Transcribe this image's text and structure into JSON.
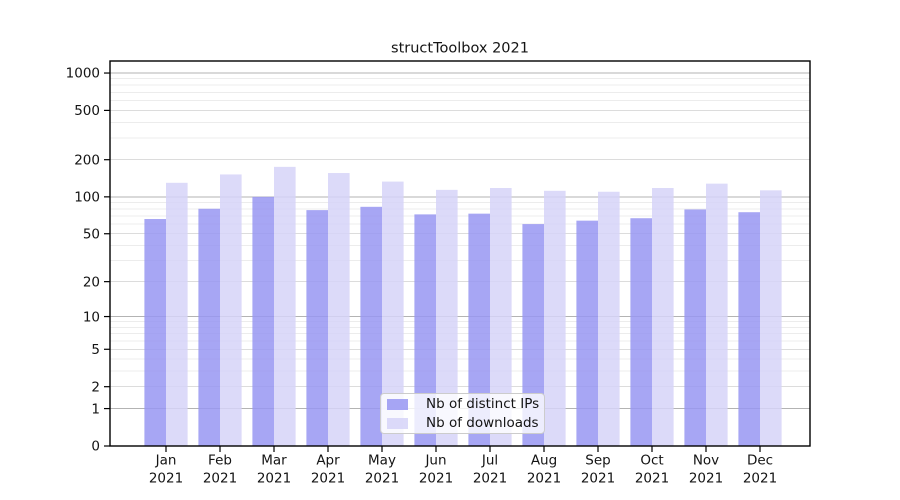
{
  "figure": {
    "background": "#ffffff"
  },
  "chart_data": {
    "type": "bar",
    "title": "structToolbox 2021",
    "xlabel": "",
    "ylabel": "",
    "categories": [
      "Jan",
      "Feb",
      "Mar",
      "Apr",
      "May",
      "Jun",
      "Jul",
      "Aug",
      "Sep",
      "Oct",
      "Nov",
      "Dec"
    ],
    "category_year": "2021",
    "series": [
      {
        "name": "Nb of distinct IPs",
        "color": "#9896f2",
        "values": [
          66,
          80,
          100,
          78,
          83,
          72,
          73,
          60,
          64,
          67,
          79,
          75
        ]
      },
      {
        "name": "Nb of downloads",
        "color": "#d6d4f8",
        "values": [
          130,
          152,
          175,
          156,
          133,
          114,
          118,
          112,
          110,
          118,
          128,
          113
        ]
      }
    ],
    "y_axis": {
      "scale": "log1p",
      "ylim": [
        0,
        1250
      ],
      "tick_values": [
        0,
        1,
        2,
        5,
        10,
        20,
        50,
        100,
        200,
        500,
        1000
      ],
      "tick_labels": [
        "0",
        "1",
        "2",
        "5",
        "10",
        "20",
        "50",
        "100",
        "200",
        "500",
        "1000"
      ],
      "major_gridlines": [
        1,
        10,
        100,
        1000
      ],
      "labeled_minor_gridlines": [
        2,
        5,
        20,
        50,
        200,
        500
      ],
      "minor_gridlines": [
        3,
        4,
        6,
        7,
        8,
        9,
        30,
        40,
        60,
        70,
        80,
        90,
        300,
        400,
        600,
        700,
        800,
        900
      ]
    },
    "legend": {
      "position": "lower center",
      "entries": [
        "Nb of distinct IPs",
        "Nb of downloads"
      ]
    },
    "grid": true,
    "colors": {
      "major_grid": "#b3b3b3",
      "labeled_minor_grid": "#dcdcdc",
      "minor_grid": "#ececec",
      "spine": "#000000",
      "text": "#141414"
    }
  }
}
